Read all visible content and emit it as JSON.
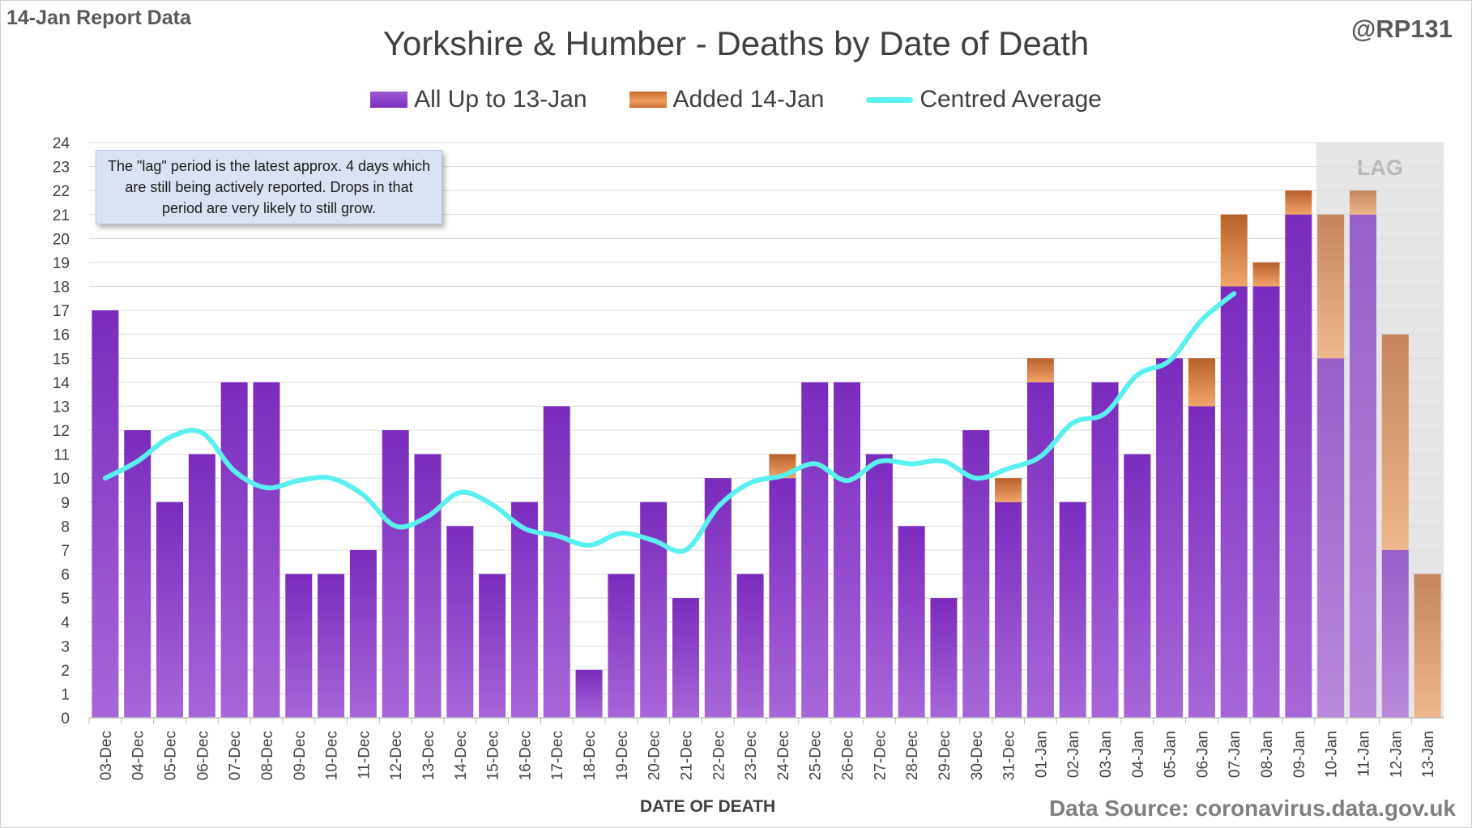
{
  "header": {
    "report_label": "14-Jan Report Data",
    "handle": "@RP131",
    "source": "Data Source: coronavirus.data.gov.uk"
  },
  "note_text": "The \"lag\" period is the latest approx. 4 days which are still being actively reported.  Drops in that period are very likely to still grow.",
  "lag_label": "LAG",
  "colors": {
    "purple": "#7e2fc1",
    "orange": "#d97a36",
    "average_line": "#5af0f0",
    "lag_shade": "#e6e6e6"
  },
  "chart_data": {
    "type": "bar",
    "stacked": true,
    "title": "Yorkshire & Humber - Deaths by Date of Death",
    "xlabel": "DATE OF DEATH",
    "ylabel": "",
    "ylim": [
      0,
      24
    ],
    "yticks": [
      0,
      1,
      2,
      3,
      4,
      5,
      6,
      7,
      8,
      9,
      10,
      11,
      12,
      13,
      14,
      15,
      16,
      17,
      18,
      19,
      20,
      21,
      22,
      23,
      24
    ],
    "grid": true,
    "legend_position": "top",
    "categories": [
      "03-Dec",
      "04-Dec",
      "05-Dec",
      "06-Dec",
      "07-Dec",
      "08-Dec",
      "09-Dec",
      "10-Dec",
      "11-Dec",
      "12-Dec",
      "13-Dec",
      "14-Dec",
      "15-Dec",
      "16-Dec",
      "17-Dec",
      "18-Dec",
      "19-Dec",
      "20-Dec",
      "21-Dec",
      "22-Dec",
      "23-Dec",
      "24-Dec",
      "25-Dec",
      "26-Dec",
      "27-Dec",
      "28-Dec",
      "29-Dec",
      "30-Dec",
      "31-Dec",
      "01-Jan",
      "02-Jan",
      "03-Jan",
      "04-Jan",
      "05-Jan",
      "06-Jan",
      "07-Jan",
      "08-Jan",
      "09-Jan",
      "10-Jan",
      "11-Jan",
      "12-Jan",
      "13-Jan"
    ],
    "lag_categories": [
      "10-Jan",
      "11-Jan",
      "12-Jan",
      "13-Jan"
    ],
    "series": [
      {
        "name": "All Up to 13-Jan",
        "type": "bar",
        "values": [
          17,
          12,
          9,
          11,
          14,
          14,
          6,
          6,
          7,
          12,
          11,
          8,
          6,
          9,
          13,
          2,
          6,
          9,
          5,
          10,
          6,
          10,
          14,
          14,
          11,
          8,
          5,
          12,
          9,
          14,
          9,
          14,
          11,
          15,
          13,
          18,
          18,
          21,
          15,
          21,
          7,
          0
        ]
      },
      {
        "name": "Added 14-Jan",
        "type": "bar",
        "values": [
          0,
          0,
          0,
          0,
          0,
          0,
          0,
          0,
          0,
          0,
          0,
          0,
          0,
          0,
          0,
          0,
          0,
          0,
          0,
          0,
          0,
          1,
          0,
          0,
          0,
          0,
          0,
          0,
          1,
          1,
          0,
          0,
          0,
          0,
          2,
          3,
          1,
          1,
          6,
          1,
          9,
          6
        ]
      },
      {
        "name": "Centred Average",
        "type": "line",
        "values": [
          10,
          10.7,
          11.7,
          11.9,
          10.3,
          9.6,
          9.9,
          10,
          9.3,
          8,
          8.4,
          9.4,
          8.9,
          7.9,
          7.6,
          7.2,
          7.7,
          7.4,
          7,
          8.8,
          9.8,
          10.1,
          10.6,
          9.9,
          10.7,
          10.6,
          10.7,
          10,
          10.4,
          10.9,
          12.3,
          12.7,
          14.3,
          14.9,
          16.6,
          17.7,
          null,
          null,
          null,
          null,
          null,
          null
        ]
      }
    ]
  }
}
